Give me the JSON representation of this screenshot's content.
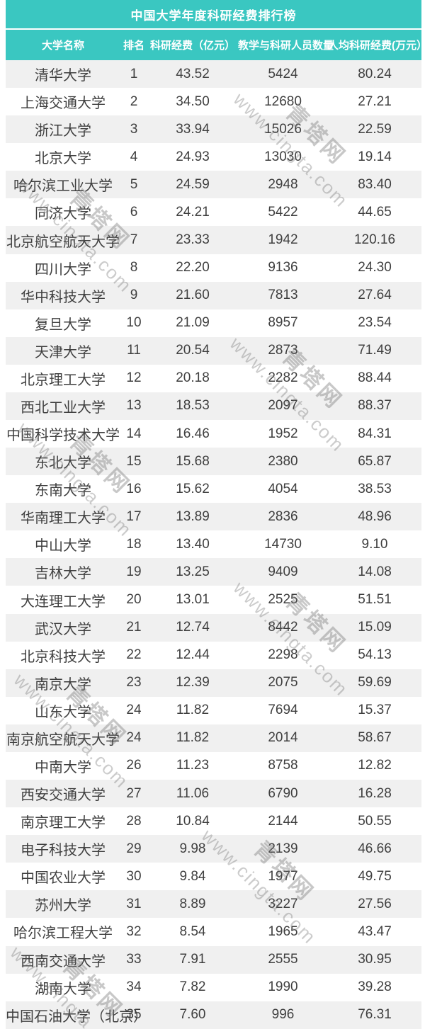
{
  "title": "中国大学年度科研经费排行榜",
  "watermark": {
    "url": "www.cingta.com",
    "brand": "青塔网"
  },
  "colors": {
    "accent_teal": "#3AC7C1",
    "row_stripe": "#F0F0F0",
    "body_text": "#3F3F3F",
    "header_text": "#FFFFFF"
  },
  "chart_data": {
    "type": "table",
    "title": "中国大学年度科研经费排行榜",
    "columns": [
      "大学名称",
      "排名",
      "科研经费（亿元）",
      "教学与科研人员数量",
      "人均科研经费(万元）"
    ],
    "rows": [
      [
        "清华大学",
        "1",
        "43.52",
        "5424",
        "80.24"
      ],
      [
        "上海交通大学",
        "2",
        "34.50",
        "12680",
        "27.21"
      ],
      [
        "浙江大学",
        "3",
        "33.94",
        "15026",
        "22.59"
      ],
      [
        "北京大学",
        "4",
        "24.93",
        "13030",
        "19.14"
      ],
      [
        "哈尔滨工业大学",
        "5",
        "24.59",
        "2948",
        "83.40"
      ],
      [
        "同济大学",
        "6",
        "24.21",
        "5422",
        "44.65"
      ],
      [
        "北京航空航天大学",
        "7",
        "23.33",
        "1942",
        "120.16"
      ],
      [
        "四川大学",
        "8",
        "22.20",
        "9136",
        "24.30"
      ],
      [
        "华中科技大学",
        "9",
        "21.60",
        "7813",
        "27.64"
      ],
      [
        "复旦大学",
        "10",
        "21.09",
        "8957",
        "23.54"
      ],
      [
        "天津大学",
        "11",
        "20.54",
        "2873",
        "71.49"
      ],
      [
        "北京理工大学",
        "12",
        "20.18",
        "2282",
        "88.44"
      ],
      [
        "西北工业大学",
        "13",
        "18.53",
        "2097",
        "88.37"
      ],
      [
        "中国科学技术大学",
        "14",
        "16.46",
        "1952",
        "84.31"
      ],
      [
        "东北大学",
        "15",
        "15.68",
        "2380",
        "65.87"
      ],
      [
        "东南大学",
        "16",
        "15.62",
        "4054",
        "38.53"
      ],
      [
        "华南理工大学",
        "17",
        "13.89",
        "2836",
        "48.96"
      ],
      [
        "中山大学",
        "18",
        "13.40",
        "14730",
        "9.10"
      ],
      [
        "吉林大学",
        "19",
        "13.25",
        "9409",
        "14.08"
      ],
      [
        "大连理工大学",
        "20",
        "13.01",
        "2525",
        "51.51"
      ],
      [
        "武汉大学",
        "21",
        "12.74",
        "8442",
        "15.09"
      ],
      [
        "北京科技大学",
        "22",
        "12.44",
        "2298",
        "54.13"
      ],
      [
        "南京大学",
        "23",
        "12.39",
        "2075",
        "59.69"
      ],
      [
        "山东大学",
        "24",
        "11.82",
        "7694",
        "15.37"
      ],
      [
        "南京航空航天大学",
        "24",
        "11.82",
        "2014",
        "58.67"
      ],
      [
        "中南大学",
        "26",
        "11.23",
        "8758",
        "12.82"
      ],
      [
        "西安交通大学",
        "27",
        "11.06",
        "6790",
        "16.28"
      ],
      [
        "南京理工大学",
        "28",
        "10.84",
        "2144",
        "50.55"
      ],
      [
        "电子科技大学",
        "29",
        "9.98",
        "2139",
        "46.66"
      ],
      [
        "中国农业大学",
        "30",
        "9.84",
        "1977",
        "49.75"
      ],
      [
        "苏州大学",
        "31",
        "8.89",
        "3227",
        "27.56"
      ],
      [
        "哈尔滨工程大学",
        "32",
        "8.54",
        "1965",
        "43.47"
      ],
      [
        "西南交通大学",
        "33",
        "7.91",
        "2555",
        "30.95"
      ],
      [
        "湖南大学",
        "34",
        "7.82",
        "1990",
        "39.28"
      ],
      [
        "中国石油大学（北京）",
        "35",
        "7.60",
        "996",
        "76.31"
      ]
    ]
  }
}
